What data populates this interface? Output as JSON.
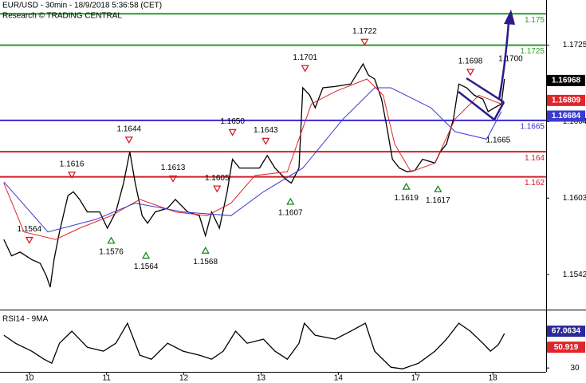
{
  "chart_data": [
    {
      "type": "line",
      "title": "EUR/USD - 30min - 18/9/2018 5:36:58 (CET)",
      "subtitle": "Research © TRADING CENTRAL",
      "xlim": [
        -0.38,
        6.69
      ],
      "ylim": [
        1.1516,
        1.1761
      ],
      "yticks": [
        1.1725,
        1.1664,
        1.1603,
        1.1542
      ],
      "series": [
        {
          "color": "#000000",
          "x": [
            -0.33,
            -0.23,
            -0.12,
            0.03,
            0.14,
            0.22,
            0.27,
            0.32,
            0.39,
            0.5,
            0.57,
            0.65,
            0.75,
            0.91,
            1.01,
            1.12,
            1.22,
            1.3,
            1.37,
            1.46,
            1.53,
            1.63,
            1.79,
            1.89,
            2.05,
            2.2,
            2.28,
            2.36,
            2.46,
            2.56,
            2.63,
            2.72,
            2.82,
            2.98,
            3.08,
            3.18,
            3.32,
            3.39,
            3.49,
            3.54,
            3.63,
            3.7,
            3.8,
            3.96,
            4.16,
            4.32,
            4.39,
            4.47,
            4.56,
            4.63,
            4.7,
            4.79,
            4.89,
            4.99,
            5.09,
            5.25,
            5.32,
            5.4,
            5.49,
            5.56,
            5.66,
            5.76,
            5.87,
            5.94,
            6.02,
            6.11,
            6.15
          ],
          "values": [
            1.157,
            1.1557,
            1.156,
            1.1554,
            1.1551,
            1.1541,
            1.1532,
            1.1554,
            1.1576,
            1.1605,
            1.1608,
            1.1602,
            1.1592,
            1.1592,
            1.1579,
            1.1592,
            1.1615,
            1.164,
            1.1615,
            1.1589,
            1.1583,
            1.1592,
            1.1595,
            1.1602,
            1.1592,
            1.1589,
            1.1573,
            1.1592,
            1.1579,
            1.1608,
            1.1634,
            1.1627,
            1.1627,
            1.1627,
            1.1637,
            1.1627,
            1.1618,
            1.1615,
            1.1627,
            1.1691,
            1.1685,
            1.1675,
            1.1691,
            1.1692,
            1.1694,
            1.171,
            1.1701,
            1.1698,
            1.1682,
            1.1659,
            1.1634,
            1.1627,
            1.1624,
            1.1625,
            1.1634,
            1.1631,
            1.164,
            1.1646,
            1.1666,
            1.1694,
            1.1691,
            1.1685,
            1.1682,
            1.1672,
            1.1675,
            1.1678,
            1.1698
          ]
        },
        {
          "color": "#e0262b",
          "x": [
            -0.33,
            -0.07,
            0.34,
            0.65,
            1.06,
            1.43,
            1.89,
            2.3,
            2.61,
            2.92,
            3.34,
            3.65,
            3.96,
            4.37,
            4.58,
            4.73,
            4.94,
            5.25,
            5.51,
            5.82,
            6.11
          ],
          "values": [
            1.1615,
            1.1576,
            1.157,
            1.1579,
            1.1589,
            1.1602,
            1.1592,
            1.1589,
            1.1599,
            1.1621,
            1.1624,
            1.1678,
            1.1688,
            1.1698,
            1.1685,
            1.1646,
            1.1624,
            1.1631,
            1.1666,
            1.1685,
            1.1678
          ]
        },
        {
          "color": "#3a3ad0",
          "x": [
            -0.33,
            0.24,
            0.86,
            1.37,
            1.99,
            2.61,
            3.03,
            3.54,
            4.06,
            4.47,
            4.68,
            5.2,
            5.51,
            5.92,
            6.11
          ],
          "values": [
            1.1616,
            1.1576,
            1.1586,
            1.1599,
            1.1592,
            1.1589,
            1.1608,
            1.1627,
            1.1666,
            1.1691,
            1.1691,
            1.1675,
            1.1656,
            1.165,
            1.1672
          ]
        }
      ],
      "levels": [
        {
          "value": 1.175,
          "label": "1.175",
          "color": "#2a9a2a"
        },
        {
          "value": 1.1725,
          "label": "1.1725",
          "color": "#2a9a2a"
        },
        {
          "value": 1.1665,
          "label": "1.1665",
          "color": "#3a2ad0"
        },
        {
          "value": 1.164,
          "label": "1.164",
          "color": "#d0202a"
        },
        {
          "value": 1.162,
          "label": "1.162",
          "color": "#d0202a"
        }
      ],
      "badges": [
        {
          "value": 1.16968,
          "label": "1.16968",
          "color": "#000000"
        },
        {
          "value": 1.16809,
          "label": "1.16809",
          "color": "#e0262b"
        },
        {
          "value": 1.16684,
          "label": "1.16684",
          "color": "#3a3ad0"
        }
      ],
      "annotations": [
        {
          "x": 0.0,
          "value": 1.1564,
          "label": "1.1564",
          "kind": "high",
          "marker": true
        },
        {
          "x": 0.55,
          "value": 1.1616,
          "label": "1.1616",
          "kind": "high",
          "marker": true
        },
        {
          "x": 1.29,
          "value": 1.1644,
          "label": "1.1644",
          "kind": "high",
          "marker": true
        },
        {
          "x": 1.06,
          "value": 1.1576,
          "label": "1.1576",
          "kind": "low",
          "marker": true
        },
        {
          "x": 1.51,
          "value": 1.1564,
          "label": "1.1564",
          "kind": "low",
          "marker": true
        },
        {
          "x": 1.86,
          "value": 1.1613,
          "label": "1.1613",
          "kind": "high",
          "marker": true
        },
        {
          "x": 2.43,
          "value": 1.1605,
          "label": "1.1605",
          "kind": "high",
          "marker": true
        },
        {
          "x": 2.28,
          "value": 1.1568,
          "label": "1.1568",
          "kind": "low",
          "marker": true
        },
        {
          "x": 2.63,
          "value": 1.165,
          "label": "1.1650",
          "kind": "high",
          "marker": true
        },
        {
          "x": 3.06,
          "value": 1.1643,
          "label": "1.1643",
          "kind": "high",
          "marker": true
        },
        {
          "x": 3.38,
          "value": 1.1607,
          "label": "1.1607",
          "kind": "low",
          "marker": true
        },
        {
          "x": 3.57,
          "value": 1.1701,
          "label": "1.1701",
          "kind": "high",
          "marker": true
        },
        {
          "x": 4.34,
          "value": 1.1722,
          "label": "1.1722",
          "kind": "high",
          "marker": true
        },
        {
          "x": 4.88,
          "value": 1.1619,
          "label": "1.1619",
          "kind": "low",
          "marker": true
        },
        {
          "x": 5.29,
          "value": 1.1617,
          "label": "1.1617",
          "kind": "low",
          "marker": true
        },
        {
          "x": 5.71,
          "value": 1.1698,
          "label": "1.1698",
          "kind": "high",
          "marker": true
        },
        {
          "x": 6.23,
          "value": 1.17,
          "label": "1.1700",
          "kind": "high",
          "marker": false
        },
        {
          "x": 6.07,
          "value": 1.1665,
          "label": "1.1665",
          "kind": "low",
          "marker": false
        }
      ]
    },
    {
      "type": "line",
      "title": "RSI14 - 9MA",
      "xlim": [
        -0.38,
        6.69
      ],
      "ylim": [
        26.1,
        87.2
      ],
      "yticks": [
        30
      ],
      "xticks": [
        {
          "value": 0,
          "label": "10"
        },
        {
          "value": 1,
          "label": "11"
        },
        {
          "value": 2,
          "label": "12"
        },
        {
          "value": 3,
          "label": "13"
        },
        {
          "value": 4,
          "label": "14"
        },
        {
          "value": 5,
          "label": "17"
        },
        {
          "value": 6,
          "label": "18"
        }
      ],
      "series": [
        {
          "color": "#000000",
          "x": [
            -0.33,
            -0.18,
            0.03,
            0.19,
            0.29,
            0.39,
            0.55,
            0.75,
            0.96,
            1.12,
            1.27,
            1.43,
            1.58,
            1.79,
            1.99,
            2.2,
            2.36,
            2.51,
            2.67,
            2.82,
            3.03,
            3.18,
            3.34,
            3.49,
            3.56,
            3.7,
            3.96,
            4.16,
            4.35,
            4.47,
            4.68,
            4.83,
            5.04,
            5.25,
            5.4,
            5.56,
            5.71,
            5.87,
            5.97,
            6.07,
            6.15
          ],
          "values": [
            63.0,
            54.9,
            46.9,
            38.8,
            34.8,
            54.9,
            67.0,
            50.9,
            46.9,
            54.9,
            75.1,
            42.9,
            38.8,
            54.9,
            46.9,
            42.9,
            38.8,
            46.9,
            67.0,
            54.9,
            59.0,
            46.9,
            38.8,
            54.9,
            75.1,
            63.0,
            59.0,
            67.0,
            75.1,
            46.9,
            30.8,
            29.1,
            34.8,
            46.9,
            59.0,
            75.1,
            67.0,
            54.9,
            46.9,
            53.3,
            64.6
          ]
        }
      ],
      "badges": [
        {
          "value": 67.0634,
          "label": "67.0634",
          "color": "#2a2a9a"
        },
        {
          "value": 50.919,
          "label": "50.919",
          "color": "#e0262b"
        }
      ]
    }
  ]
}
